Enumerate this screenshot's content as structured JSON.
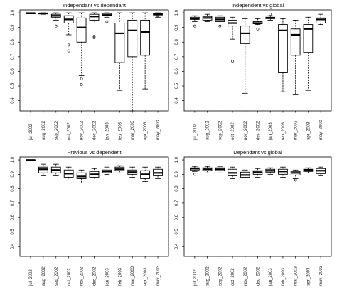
{
  "chart_data": [
    {
      "type": "box",
      "title": "Independant vs dependant",
      "categories": [
        "jul_2002",
        "aug_2002",
        "sep_2002",
        "oct_2002",
        "nov_2002",
        "dec_2002",
        "jan_2003",
        "feb_2003",
        "mar_2003",
        "apr_2003",
        "may_2003"
      ],
      "yticks": [
        "0.4",
        "0.5",
        "0.6",
        "0.7",
        "0.8",
        "0.9",
        "1.0"
      ],
      "ylim": [
        0.33,
        1.02
      ],
      "grid": false,
      "boxes": [
        {
          "min": 0.996,
          "q1": 0.997,
          "median": 0.998,
          "q3": 0.999,
          "max": 1.0,
          "outliers": []
        },
        {
          "min": 0.99,
          "q1": 0.994,
          "median": 0.996,
          "q3": 0.998,
          "max": 1.0,
          "outliers": []
        },
        {
          "min": 0.95,
          "q1": 0.97,
          "median": 0.98,
          "q3": 0.99,
          "max": 1.0,
          "outliers": [
            0.91
          ]
        },
        {
          "min": 0.85,
          "q1": 0.93,
          "median": 0.955,
          "q3": 0.98,
          "max": 1.0,
          "outliers": [
            0.74,
            0.78
          ]
        },
        {
          "min": 0.57,
          "q1": 0.8,
          "median": 0.9,
          "q3": 0.965,
          "max": 1.0,
          "outliers": [
            0.51,
            0.55
          ]
        },
        {
          "min": 0.93,
          "q1": 0.95,
          "median": 0.975,
          "q3": 0.99,
          "max": 1.0,
          "outliers": [
            0.83,
            0.84
          ]
        },
        {
          "min": 0.97,
          "q1": 0.98,
          "median": 0.985,
          "q3": 0.995,
          "max": 1.0,
          "outliers": [
            0.94
          ]
        },
        {
          "min": 0.47,
          "q1": 0.66,
          "median": 0.86,
          "q3": 0.93,
          "max": 1.0,
          "outliers": []
        },
        {
          "min": 0.33,
          "q1": 0.7,
          "median": 0.88,
          "q3": 0.95,
          "max": 1.0,
          "outliers": []
        },
        {
          "min": 0.48,
          "q1": 0.71,
          "median": 0.87,
          "q3": 0.95,
          "max": 1.0,
          "outliers": []
        },
        {
          "min": 0.97,
          "q1": 0.985,
          "median": 0.99,
          "q3": 0.995,
          "max": 1.0,
          "outliers": [
            0.98
          ]
        }
      ]
    },
    {
      "type": "box",
      "title": "Independent vs global",
      "categories": [
        "jul_2002",
        "aug_2002",
        "sep_2002",
        "oct_2002",
        "nov_2002",
        "dec_2002",
        "jan_2003",
        "feb_2003",
        "mar_2003",
        "apr_2003",
        "may_2003"
      ],
      "yticks": [
        "0.4",
        "0.5",
        "0.6",
        "0.7",
        "0.8",
        "0.9",
        "1.0"
      ],
      "ylim": [
        0.33,
        1.02
      ],
      "grid": false,
      "boxes": [
        {
          "min": 0.94,
          "q1": 0.955,
          "median": 0.96,
          "q3": 0.97,
          "max": 0.98,
          "outliers": [
            0.91
          ]
        },
        {
          "min": 0.94,
          "q1": 0.95,
          "median": 0.965,
          "q3": 0.975,
          "max": 0.99,
          "outliers": []
        },
        {
          "min": 0.93,
          "q1": 0.94,
          "median": 0.955,
          "q3": 0.97,
          "max": 0.98,
          "outliers": [
            0.91
          ]
        },
        {
          "min": 0.82,
          "q1": 0.91,
          "median": 0.93,
          "q3": 0.95,
          "max": 0.97,
          "outliers": [
            0.67
          ]
        },
        {
          "min": 0.45,
          "q1": 0.79,
          "median": 0.86,
          "q3": 0.91,
          "max": 0.96,
          "outliers": []
        },
        {
          "min": 0.92,
          "q1": 0.925,
          "median": 0.93,
          "q3": 0.94,
          "max": 0.96,
          "outliers": [
            0.89
          ]
        },
        {
          "min": 0.95,
          "q1": 0.96,
          "median": 0.965,
          "q3": 0.97,
          "max": 0.98,
          "outliers": [
            0.99
          ]
        },
        {
          "min": 0.46,
          "q1": 0.59,
          "median": 0.88,
          "q3": 0.92,
          "max": 0.96,
          "outliers": []
        },
        {
          "min": 0.44,
          "q1": 0.71,
          "median": 0.85,
          "q3": 0.89,
          "max": 0.95,
          "outliers": []
        },
        {
          "min": 0.47,
          "q1": 0.73,
          "median": 0.89,
          "q3": 0.92,
          "max": 0.97,
          "outliers": []
        },
        {
          "min": 0.92,
          "q1": 0.93,
          "median": 0.955,
          "q3": 0.965,
          "max": 0.99,
          "outliers": []
        }
      ]
    },
    {
      "type": "box",
      "title": "Previous vs dependent",
      "categories": [
        "jul_2002",
        "aug_2002",
        "sep_2002",
        "oct_2002",
        "nov_2002",
        "dec_2002",
        "jan_2003",
        "feb_2003",
        "mar_2003",
        "apr_2003",
        "may_2003"
      ],
      "yticks": [
        "0.4",
        "0.5",
        "0.6",
        "0.7",
        "0.8",
        "0.9",
        "1.0"
      ],
      "ylim": [
        0.33,
        1.02
      ],
      "grid": false,
      "boxes": [
        {
          "min": 0.998,
          "q1": 0.998,
          "median": 0.999,
          "q3": 1.0,
          "max": 1.0,
          "outliers": []
        },
        {
          "min": 0.89,
          "q1": 0.91,
          "median": 0.935,
          "q3": 0.95,
          "max": 0.97,
          "outliers": []
        },
        {
          "min": 0.89,
          "q1": 0.91,
          "median": 0.93,
          "q3": 0.95,
          "max": 0.97,
          "outliers": []
        },
        {
          "min": 0.86,
          "q1": 0.88,
          "median": 0.905,
          "q3": 0.93,
          "max": 0.95,
          "outliers": []
        },
        {
          "min": 0.84,
          "q1": 0.87,
          "median": 0.885,
          "q3": 0.91,
          "max": 0.93,
          "outliers": []
        },
        {
          "min": 0.86,
          "q1": 0.88,
          "median": 0.9,
          "q3": 0.92,
          "max": 0.94,
          "outliers": []
        },
        {
          "min": 0.9,
          "q1": 0.91,
          "median": 0.92,
          "q3": 0.93,
          "max": 0.95,
          "outliers": []
        },
        {
          "min": 0.91,
          "q1": 0.925,
          "median": 0.935,
          "q3": 0.95,
          "max": 0.96,
          "outliers": []
        },
        {
          "min": 0.88,
          "q1": 0.9,
          "median": 0.915,
          "q3": 0.93,
          "max": 0.95,
          "outliers": []
        },
        {
          "min": 0.85,
          "q1": 0.87,
          "median": 0.9,
          "q3": 0.925,
          "max": 0.95,
          "outliers": []
        },
        {
          "min": 0.87,
          "q1": 0.89,
          "median": 0.91,
          "q3": 0.935,
          "max": 0.95,
          "outliers": []
        }
      ]
    },
    {
      "type": "box",
      "title": "Dependant vs global",
      "categories": [
        "jul_2002",
        "aug_2002",
        "sep_2002",
        "oct_2002",
        "nov_2002",
        "dec_2002",
        "jan_2003",
        "feb_2003",
        "mar_2003",
        "apr_2003",
        "may_2003"
      ],
      "yticks": [
        "0.4",
        "0.5",
        "0.6",
        "0.7",
        "0.8",
        "0.9",
        "1.0"
      ],
      "ylim": [
        0.33,
        1.02
      ],
      "grid": false,
      "boxes": [
        {
          "min": 0.92,
          "q1": 0.93,
          "median": 0.94,
          "q3": 0.945,
          "max": 0.955,
          "outliers": [
            0.9
          ]
        },
        {
          "min": 0.91,
          "q1": 0.925,
          "median": 0.935,
          "q3": 0.945,
          "max": 0.955,
          "outliers": []
        },
        {
          "min": 0.91,
          "q1": 0.925,
          "median": 0.935,
          "q3": 0.945,
          "max": 0.955,
          "outliers": []
        },
        {
          "min": 0.87,
          "q1": 0.89,
          "median": 0.91,
          "q3": 0.935,
          "max": 0.95,
          "outliers": []
        },
        {
          "min": 0.86,
          "q1": 0.88,
          "median": 0.895,
          "q3": 0.915,
          "max": 0.93,
          "outliers": []
        },
        {
          "min": 0.88,
          "q1": 0.9,
          "median": 0.915,
          "q3": 0.925,
          "max": 0.94,
          "outliers": []
        },
        {
          "min": 0.9,
          "q1": 0.915,
          "median": 0.925,
          "q3": 0.935,
          "max": 0.945,
          "outliers": []
        },
        {
          "min": 0.88,
          "q1": 0.9,
          "median": 0.92,
          "q3": 0.935,
          "max": 0.95,
          "outliers": []
        },
        {
          "min": 0.87,
          "q1": 0.895,
          "median": 0.91,
          "q3": 0.92,
          "max": 0.93,
          "outliers": [
            0.86
          ]
        },
        {
          "min": 0.91,
          "q1": 0.92,
          "median": 0.93,
          "q3": 0.935,
          "max": 0.945,
          "outliers": []
        },
        {
          "min": 0.89,
          "q1": 0.905,
          "median": 0.925,
          "q3": 0.94,
          "max": 0.95,
          "outliers": []
        }
      ]
    }
  ]
}
